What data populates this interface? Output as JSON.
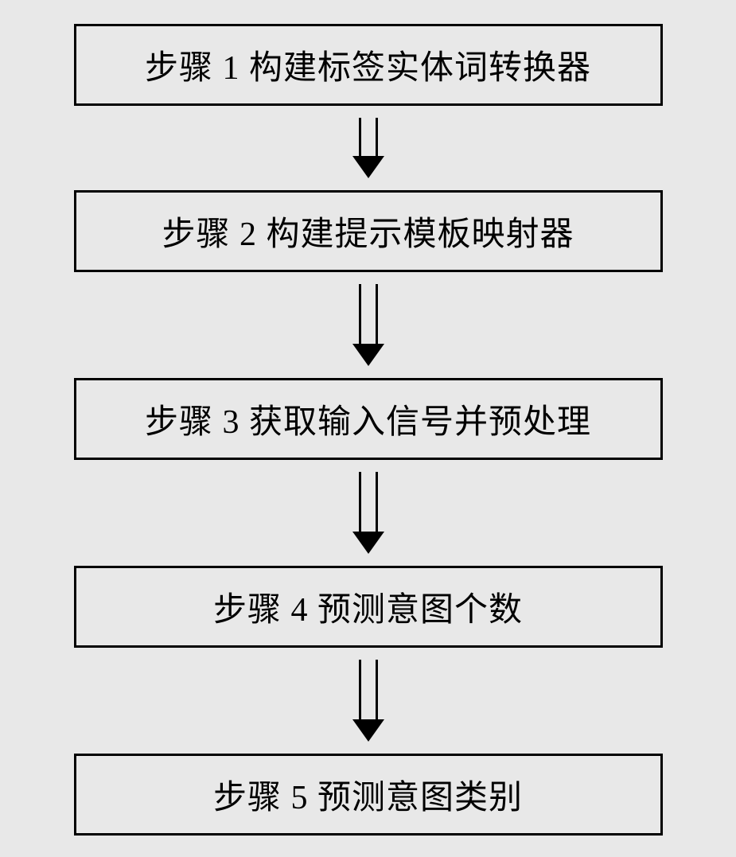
{
  "flowchart": {
    "type": "flowchart",
    "direction": "vertical",
    "background_color": "#e8e8e8",
    "border_color": "#000000",
    "border_width": 3,
    "text_color": "#000000",
    "font_size": 42,
    "font_family": "SimSun",
    "box_min_width": 740,
    "box_padding": "18px 30px",
    "arrow_shaft_width": 24,
    "arrow_head_width": 40,
    "steps": [
      {
        "label": "步骤 1 构建标签实体词转换器",
        "arrow_shaft_height": 48
      },
      {
        "label": "步骤 2 构建提示模板映射器",
        "arrow_shaft_height": 75
      },
      {
        "label": "步骤 3 获取输入信号并预处理",
        "arrow_shaft_height": 75
      },
      {
        "label": "步骤 4 预测意图个数",
        "arrow_shaft_height": 75
      },
      {
        "label": "步骤 5 预测意图类别",
        "arrow_shaft_height": 0
      }
    ]
  }
}
